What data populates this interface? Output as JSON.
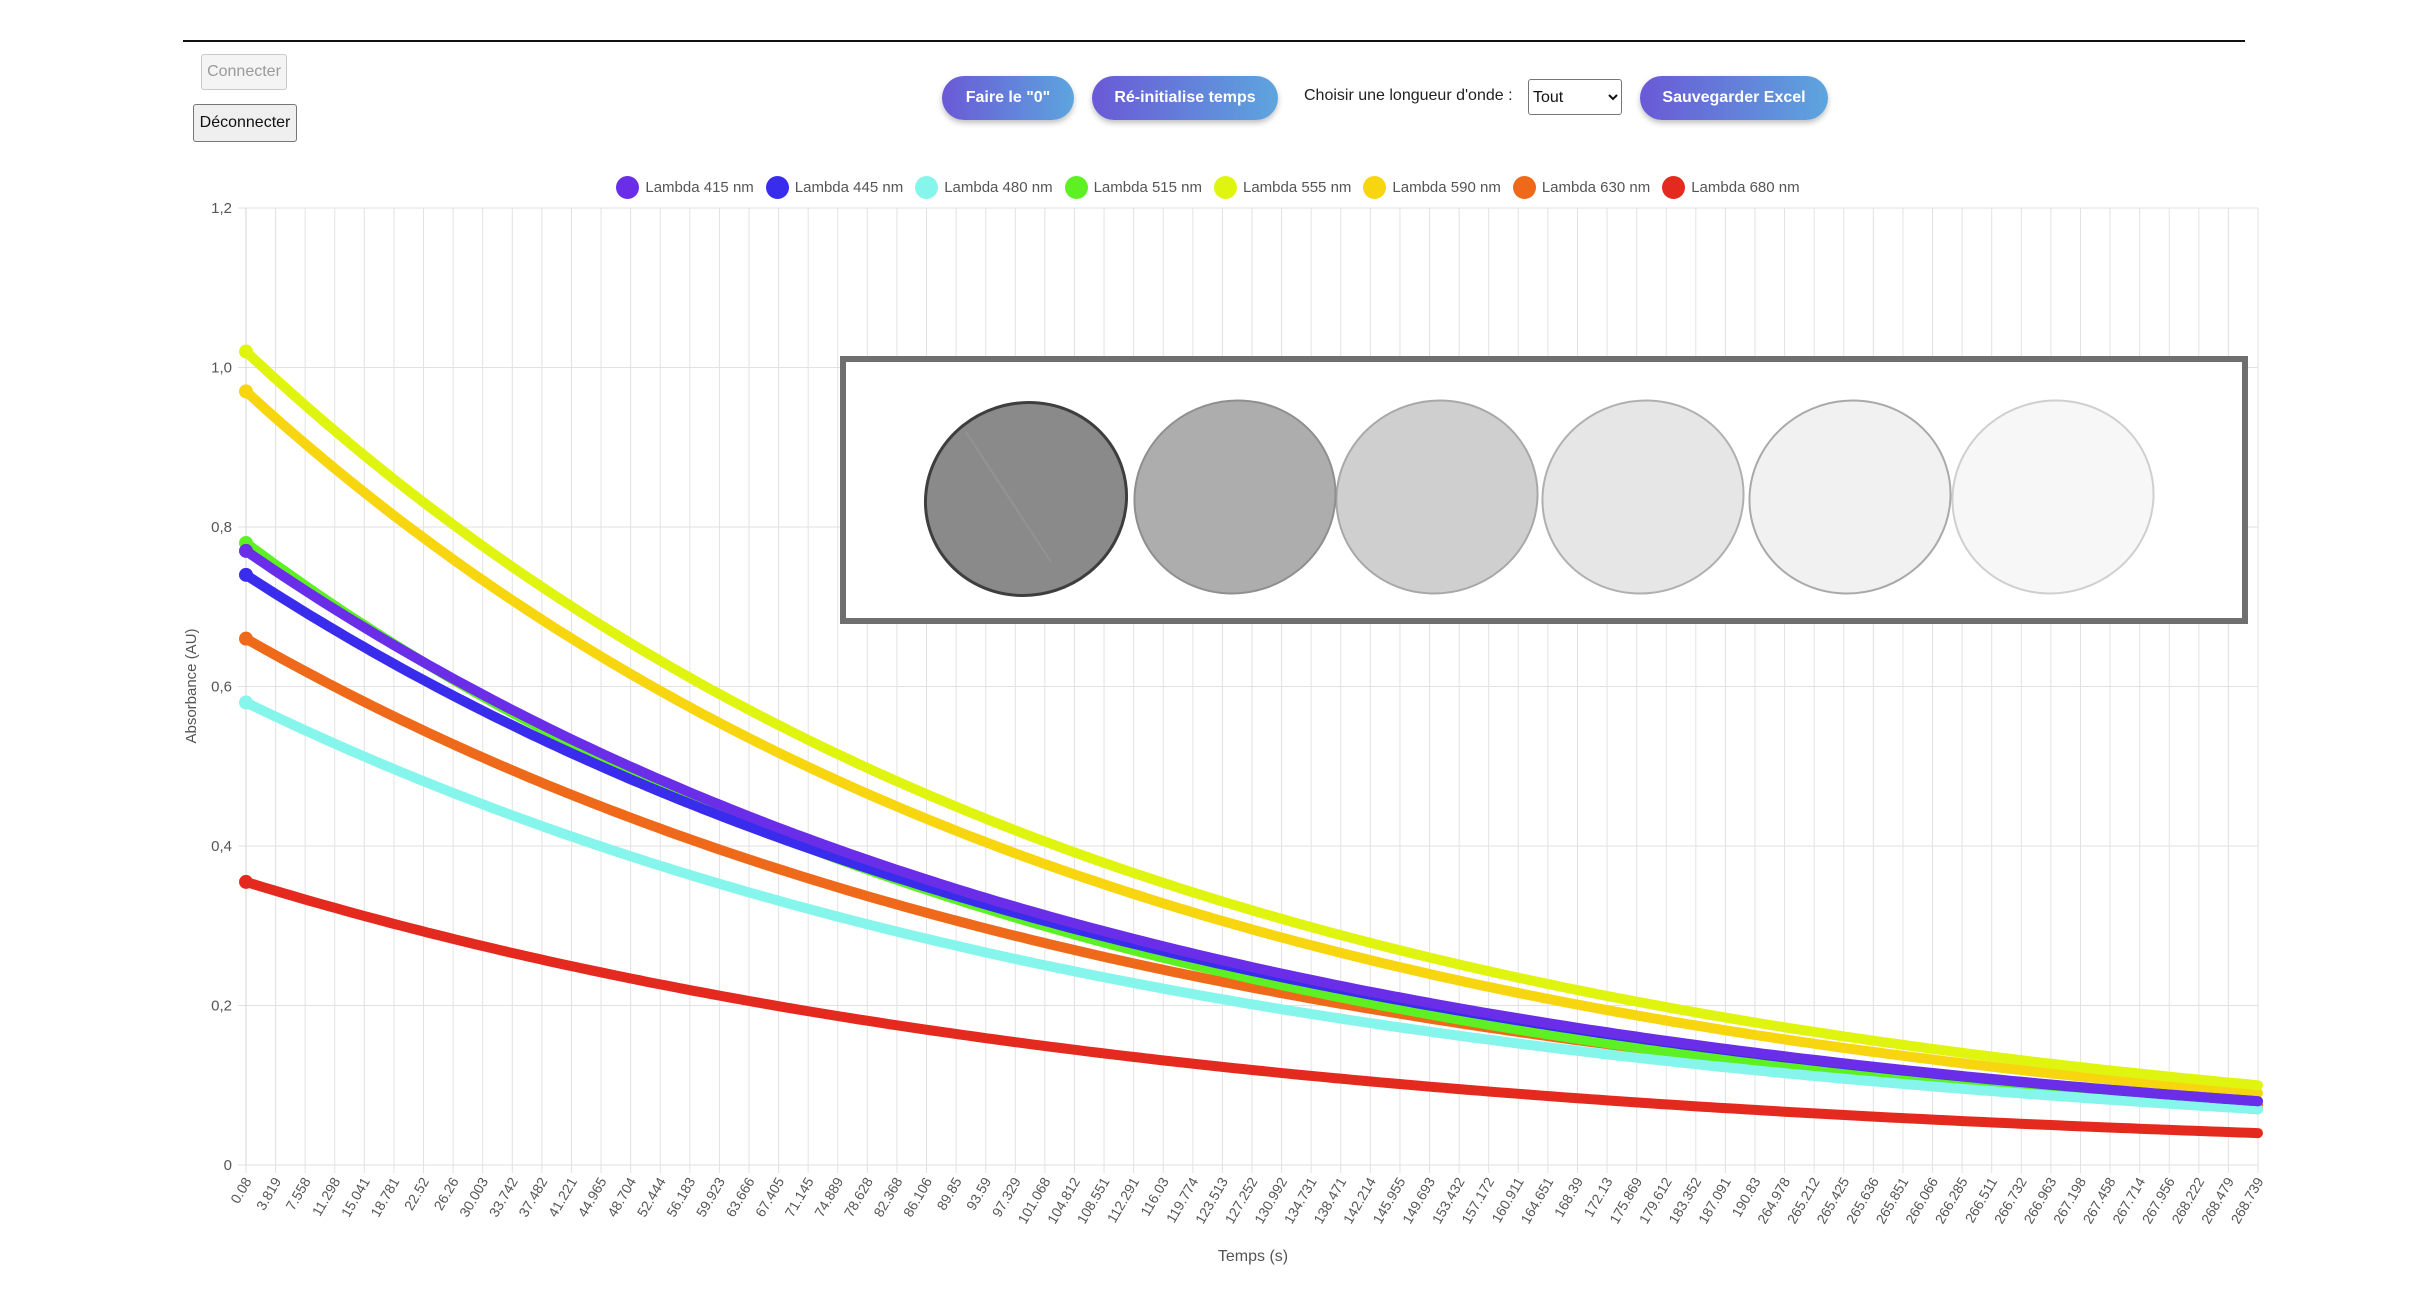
{
  "controls": {
    "connect_label": "Connecter",
    "disconnect_label": "Déconnecter",
    "zero_label": "Faire le \"0\"",
    "reset_time_label": "Ré-initialise temps",
    "wavelength_label": "Choisir une longueur d'onde :",
    "wavelength_selected": "Tout",
    "save_excel_label": "Sauvegarder Excel"
  },
  "chart_data": {
    "type": "line",
    "title": "",
    "xlabel": "Temps (s)",
    "ylabel": "Absorbance (AU)",
    "ylim": [
      0,
      1.2
    ],
    "yticks": [
      "0",
      "0,2",
      "0,4",
      "0,6",
      "0,8",
      "1,0",
      "1,2"
    ],
    "xrange_seconds": [
      0.08,
      268.739
    ],
    "categories": [
      "0.08",
      "3.819",
      "7.558",
      "11.298",
      "15.041",
      "18.781",
      "22.52",
      "26.26",
      "30.003",
      "33.742",
      "37.482",
      "41.221",
      "44.965",
      "48.704",
      "52.444",
      "56.183",
      "59.923",
      "63.666",
      "67.405",
      "71.145",
      "74.889",
      "78.628",
      "82.368",
      "86.106",
      "89.85",
      "93.59",
      "97.329",
      "101.068",
      "104.812",
      "108.551",
      "112.291",
      "116.03",
      "119.774",
      "123.513",
      "127.252",
      "130.992",
      "134.731",
      "138.471",
      "142.214",
      "145.955",
      "149.693",
      "153.432",
      "157.172",
      "160.911",
      "164.651",
      "168.39",
      "172.13",
      "175.869",
      "179.612",
      "183.352",
      "187.091",
      "190.83",
      "264.978",
      "265.212",
      "265.425",
      "265.636",
      "265.851",
      "266.066",
      "266.285",
      "266.511",
      "266.732",
      "266.963",
      "267.198",
      "267.458",
      "267.714",
      "267.956",
      "268.222",
      "268.479",
      "268.739"
    ],
    "series": [
      {
        "name": "Lambda 415 nm",
        "color": "#6b2ee8",
        "start": 0.77,
        "end": 0.08
      },
      {
        "name": "Lambda 445 nm",
        "color": "#3a2cec",
        "start": 0.74,
        "end": 0.08
      },
      {
        "name": "Lambda 480 nm",
        "color": "#86f6ec",
        "start": 0.58,
        "end": 0.07
      },
      {
        "name": "Lambda 515 nm",
        "color": "#5df023",
        "start": 0.78,
        "end": 0.07
      },
      {
        "name": "Lambda 555 nm",
        "color": "#dff510",
        "start": 1.02,
        "end": 0.1
      },
      {
        "name": "Lambda 590 nm",
        "color": "#f7d60f",
        "start": 0.97,
        "end": 0.09
      },
      {
        "name": "Lambda 630 nm",
        "color": "#ee6a1a",
        "start": 0.66,
        "end": 0.075
      },
      {
        "name": "Lambda 680 nm",
        "color": "#e42a1f",
        "start": 0.355,
        "end": 0.04
      }
    ]
  },
  "overlay": {
    "image_name": "lens-fading-photo",
    "lens_count": 6
  }
}
